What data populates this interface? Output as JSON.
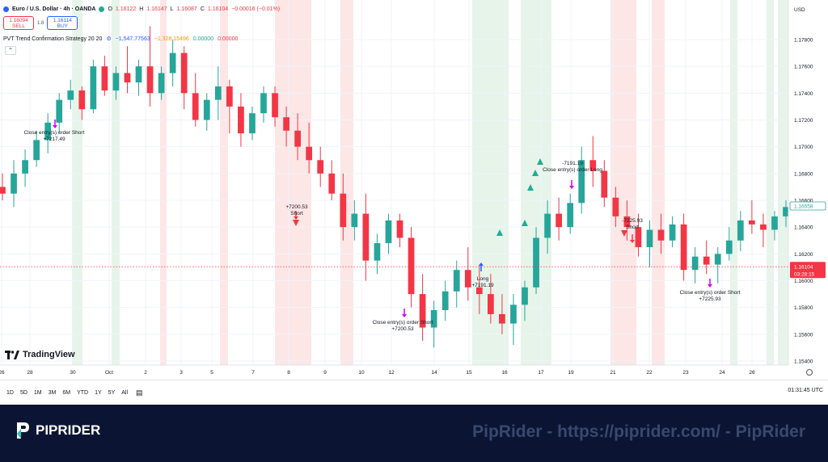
{
  "header": {
    "symbol": "Euro / U.S. Dollar · 4h · OANDA",
    "ohlc_prefix_o": "O",
    "o": "1.16122",
    "ohlc_prefix_h": "H",
    "h": "1.16147",
    "ohlc_prefix_l": "L",
    "l": "1.16087",
    "ohlc_prefix_c": "C",
    "c": "1.16104",
    "change": "−0.00016 (−0.01%)",
    "status_color": "#22ab94"
  },
  "trade": {
    "sell_price": "1.16094",
    "sell_label": "SELL",
    "spread": "1.8",
    "buy_price": "1.16114",
    "buy_label": "BUY"
  },
  "indicator": {
    "name": "PVT Trend Confirmation Strategy 20 20",
    "v1": "−1,547.77563",
    "v2": "−1,328.15496",
    "v3": "0.00000",
    "v4": "0.00000"
  },
  "price_axis": {
    "currency": "USD",
    "ticks": [
      "1.17800",
      "1.17600",
      "1.17400",
      "1.17200",
      "1.17000",
      "1.16800",
      "1.16600",
      "1.16400",
      "1.16200",
      "1.16000",
      "1.15800",
      "1.15600",
      "1.15400"
    ],
    "last_price": "1.16104",
    "countdown": "03:28:15",
    "ema_value": "1.16558"
  },
  "time_axis": {
    "ticks": [
      "26",
      "28",
      "30",
      "Oct",
      "2",
      "3",
      "5",
      "7",
      "8",
      "9",
      "10",
      "12",
      "14",
      "15",
      "16",
      "17",
      "19",
      "21",
      "22",
      "23",
      "24",
      "26"
    ]
  },
  "annotations": [
    {
      "line1": "Close entry(s) order Short",
      "line2": "+7217.49"
    },
    {
      "line1": "+7200.53",
      "line2": "Short"
    },
    {
      "line1": "Close entry(s) order Short",
      "line2": "+7200.53"
    },
    {
      "line1": "Long",
      "line2": "+7191.19"
    },
    {
      "line1": "-7191.19",
      "line2": "Close entry(s) order Long"
    },
    {
      "line1": "-7225.93",
      "line2": "Short"
    },
    {
      "line1": "Close entry(s) order Short",
      "line2": "+7225.93"
    }
  ],
  "branding": {
    "tradingview": "TradingView"
  },
  "ranges": [
    "1D",
    "5D",
    "1M",
    "3M",
    "6M",
    "YTD",
    "1Y",
    "5Y",
    "All"
  ],
  "clock": "01:31:45 UTC",
  "banner": {
    "brand": "PIPRIDER",
    "watermark": "PipRider - https://piprider.com/ - PipRider"
  },
  "colors": {
    "up": "#26a69a",
    "down": "#f23645",
    "bg_red": "#fde6e6",
    "bg_green": "#e6f4ea",
    "ema": "#26a69a",
    "banner_bg": "#0b1533"
  },
  "chart_data": {
    "type": "candlestick",
    "ylim": [
      1.1535,
      1.1795
    ],
    "candles": [
      [
        1.167,
        1.168,
        1.166,
        1.1665
      ],
      [
        1.1665,
        1.169,
        1.1655,
        1.168
      ],
      [
        1.168,
        1.1698,
        1.167,
        1.169
      ],
      [
        1.169,
        1.1712,
        1.1685,
        1.1705
      ],
      [
        1.1705,
        1.1725,
        1.1695,
        1.1718
      ],
      [
        1.1718,
        1.174,
        1.171,
        1.1735
      ],
      [
        1.1735,
        1.175,
        1.1728,
        1.1742
      ],
      [
        1.1742,
        1.1745,
        1.172,
        1.1728
      ],
      [
        1.1728,
        1.1765,
        1.1725,
        1.176
      ],
      [
        1.176,
        1.1768,
        1.1738,
        1.1742
      ],
      [
        1.1742,
        1.176,
        1.1735,
        1.1755
      ],
      [
        1.1755,
        1.1775,
        1.174,
        1.1748
      ],
      [
        1.1748,
        1.1765,
        1.1738,
        1.176
      ],
      [
        1.176,
        1.179,
        1.173,
        1.174
      ],
      [
        1.174,
        1.176,
        1.1735,
        1.1755
      ],
      [
        1.1755,
        1.178,
        1.1745,
        1.177
      ],
      [
        1.177,
        1.1775,
        1.1728,
        1.174
      ],
      [
        1.174,
        1.1755,
        1.1715,
        1.172
      ],
      [
        1.172,
        1.174,
        1.1712,
        1.1735
      ],
      [
        1.1735,
        1.176,
        1.172,
        1.1745
      ],
      [
        1.1745,
        1.175,
        1.171,
        1.173
      ],
      [
        1.173,
        1.174,
        1.17,
        1.171
      ],
      [
        1.171,
        1.173,
        1.1705,
        1.1725
      ],
      [
        1.1725,
        1.1745,
        1.1718,
        1.174
      ],
      [
        1.174,
        1.1745,
        1.1715,
        1.1722
      ],
      [
        1.1722,
        1.173,
        1.17,
        1.1712
      ],
      [
        1.1712,
        1.1725,
        1.169,
        1.17
      ],
      [
        1.17,
        1.1718,
        1.168,
        1.169
      ],
      [
        1.169,
        1.17,
        1.167,
        1.168
      ],
      [
        1.168,
        1.169,
        1.166,
        1.1665
      ],
      [
        1.1665,
        1.168,
        1.163,
        1.164
      ],
      [
        1.164,
        1.166,
        1.163,
        1.165
      ],
      [
        1.165,
        1.1665,
        1.16,
        1.1615
      ],
      [
        1.1615,
        1.1635,
        1.1605,
        1.1628
      ],
      [
        1.1628,
        1.165,
        1.162,
        1.1645
      ],
      [
        1.1645,
        1.165,
        1.1625,
        1.1632
      ],
      [
        1.1632,
        1.164,
        1.158,
        1.159
      ],
      [
        1.159,
        1.1605,
        1.1555,
        1.1565
      ],
      [
        1.1565,
        1.1585,
        1.155,
        1.1578
      ],
      [
        1.1578,
        1.16,
        1.157,
        1.1592
      ],
      [
        1.1592,
        1.1615,
        1.158,
        1.1608
      ],
      [
        1.1608,
        1.1625,
        1.1585,
        1.1595
      ],
      [
        1.1595,
        1.1612,
        1.1575,
        1.159
      ],
      [
        1.159,
        1.1605,
        1.1568,
        1.1575
      ],
      [
        1.1575,
        1.159,
        1.156,
        1.1568
      ],
      [
        1.1568,
        1.159,
        1.1552,
        1.1582
      ],
      [
        1.1582,
        1.16,
        1.157,
        1.1595
      ],
      [
        1.1595,
        1.164,
        1.159,
        1.1632
      ],
      [
        1.1632,
        1.166,
        1.162,
        1.165
      ],
      [
        1.165,
        1.1662,
        1.163,
        1.164
      ],
      [
        1.164,
        1.1665,
        1.1635,
        1.1658
      ],
      [
        1.1658,
        1.17,
        1.165,
        1.169
      ],
      [
        1.169,
        1.1708,
        1.167,
        1.1682
      ],
      [
        1.1682,
        1.169,
        1.1655,
        1.1662
      ],
      [
        1.1662,
        1.167,
        1.164,
        1.1648
      ],
      [
        1.1648,
        1.166,
        1.163,
        1.164
      ],
      [
        1.164,
        1.165,
        1.1618,
        1.1625
      ],
      [
        1.1625,
        1.1645,
        1.161,
        1.1638
      ],
      [
        1.1638,
        1.165,
        1.162,
        1.163
      ],
      [
        1.163,
        1.1648,
        1.1625,
        1.1642
      ],
      [
        1.1642,
        1.165,
        1.16,
        1.1608
      ],
      [
        1.1608,
        1.1625,
        1.1598,
        1.1618
      ],
      [
        1.1618,
        1.163,
        1.1605,
        1.1612
      ],
      [
        1.1612,
        1.1625,
        1.1598,
        1.162
      ],
      [
        1.162,
        1.164,
        1.1615,
        1.163
      ],
      [
        1.163,
        1.1652,
        1.1622,
        1.1645
      ],
      [
        1.1645,
        1.166,
        1.1635,
        1.1642
      ],
      [
        1.1642,
        1.165,
        1.1625,
        1.1638
      ],
      [
        1.1638,
        1.1652,
        1.163,
        1.1648
      ],
      [
        1.1648,
        1.166,
        1.164,
        1.1655
      ]
    ]
  }
}
